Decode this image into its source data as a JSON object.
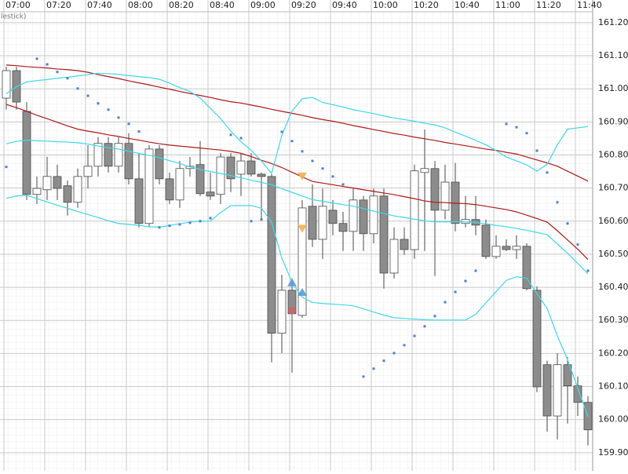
{
  "chart_data": {
    "type": "candlestick",
    "title": "lestick)",
    "categories": [
      "07:00",
      null,
      null,
      null,
      "07:20",
      null,
      null,
      null,
      "07:40",
      null,
      null,
      null,
      "08:00",
      null,
      null,
      null,
      "08:20",
      null,
      null,
      null,
      "08:40",
      null,
      null,
      null,
      "09:00",
      null,
      null,
      null,
      "09:20",
      null,
      null,
      null,
      "09:40",
      null,
      null,
      null,
      "10:00",
      null,
      null,
      null,
      "10:20",
      null,
      null,
      null,
      "10:40",
      null,
      null,
      null,
      "11:00",
      null,
      null,
      null,
      "11:20",
      null,
      null,
      null,
      "11:40",
      null
    ],
    "open": [
      160.972,
      161.055,
      160.932,
      160.681,
      160.695,
      160.735,
      160.707,
      160.657,
      160.735,
      160.766,
      160.835,
      160.766,
      160.835,
      160.728,
      160.593,
      160.818,
      160.728,
      160.664,
      160.759,
      160.771,
      160.688,
      160.681,
      160.794,
      160.742,
      160.782,
      160.742,
      160.735,
      160.261,
      160.391,
      160.315,
      160.645,
      160.545,
      160.633,
      160.593,
      160.569,
      160.664,
      160.562,
      160.676,
      160.443,
      160.545,
      160.514,
      160.747,
      160.759,
      160.633,
      160.718,
      160.593,
      160.605,
      160.588,
      160.493,
      160.524,
      160.514,
      160.524,
      160.391,
      160.166,
      160.011,
      160.166,
      160.102,
      160.052
    ],
    "high": [
      161.067,
      161.067,
      160.96,
      160.735,
      160.794,
      160.771,
      160.723,
      160.759,
      160.83,
      160.854,
      160.854,
      160.854,
      160.866,
      160.806,
      160.83,
      160.83,
      160.747,
      160.782,
      160.794,
      160.842,
      160.747,
      160.806,
      160.806,
      160.806,
      160.806,
      160.747,
      160.742,
      160.438,
      160.427,
      160.664,
      160.711,
      160.699,
      160.664,
      160.628,
      160.699,
      160.676,
      160.699,
      160.699,
      160.581,
      160.581,
      160.771,
      160.877,
      160.782,
      160.771,
      160.776,
      160.676,
      160.676,
      160.605,
      160.557,
      160.545,
      160.557,
      160.533,
      160.403,
      160.178,
      160.201,
      160.189,
      160.13,
      160.071
    ],
    "low": [
      160.937,
      160.937,
      160.664,
      160.652,
      160.664,
      160.664,
      160.617,
      160.64,
      160.699,
      160.735,
      160.747,
      160.747,
      160.711,
      160.581,
      160.581,
      160.711,
      160.652,
      160.64,
      160.735,
      160.676,
      160.664,
      160.652,
      160.688,
      160.676,
      160.735,
      160.605,
      160.173,
      160.201,
      160.142,
      160.308,
      160.522,
      160.486,
      160.557,
      160.51,
      160.51,
      160.51,
      160.533,
      160.396,
      160.427,
      160.498,
      160.486,
      160.51,
      160.434,
      160.605,
      160.569,
      160.581,
      160.557,
      160.486,
      160.486,
      160.51,
      160.486,
      160.391,
      160.083,
      159.964,
      159.94,
      159.988,
      160.011,
      159.922
    ],
    "close": [
      161.055,
      160.96,
      160.681,
      160.699,
      160.735,
      160.699,
      160.657,
      160.735,
      160.766,
      160.835,
      160.766,
      160.835,
      160.728,
      160.593,
      160.818,
      160.728,
      160.664,
      160.759,
      160.766,
      160.683,
      160.676,
      160.794,
      160.728,
      160.782,
      160.742,
      160.735,
      160.261,
      160.391,
      160.32,
      160.64,
      160.545,
      160.645,
      160.593,
      160.569,
      160.664,
      160.562,
      160.676,
      160.443,
      160.545,
      160.514,
      160.752,
      160.759,
      160.633,
      160.718,
      160.593,
      160.605,
      160.588,
      160.493,
      160.524,
      160.514,
      160.524,
      160.396,
      160.099,
      160.011,
      160.166,
      160.102,
      160.052,
      159.969
    ],
    "up_color": "#ffffff",
    "down_color": "#8c8c8c",
    "edge_color": "#4a4a4a",
    "lines": [
      {
        "color": "#b01818",
        "values": [
          161.072,
          161.07,
          161.067,
          161.065,
          161.063,
          161.06,
          161.058,
          161.055,
          161.05,
          161.043,
          161.037,
          161.031,
          161.024,
          161.018,
          161.012,
          161.005,
          160.999,
          160.992,
          160.986,
          160.98,
          160.974,
          160.967,
          160.961,
          160.957,
          160.951,
          160.945,
          160.938,
          160.932,
          160.926,
          160.92,
          160.913,
          160.907,
          160.902,
          160.896,
          160.889,
          160.883,
          160.877,
          160.871,
          160.865,
          160.86,
          160.854,
          160.849,
          160.844,
          160.838,
          160.833,
          160.828,
          160.823,
          160.818,
          160.814,
          160.808,
          160.803,
          160.794,
          160.785,
          160.776,
          160.766,
          160.751,
          160.736,
          160.721
        ]
      },
      {
        "color": "#b01818",
        "values": [
          160.953,
          160.943,
          160.932,
          160.92,
          160.91,
          160.899,
          160.888,
          160.878,
          160.872,
          160.867,
          160.861,
          160.856,
          160.85,
          160.845,
          160.839,
          160.834,
          160.83,
          160.827,
          160.824,
          160.821,
          160.818,
          160.815,
          160.811,
          160.805,
          160.795,
          160.784,
          160.774,
          160.762,
          160.748,
          160.734,
          160.72,
          160.715,
          160.71,
          160.705,
          160.7,
          160.695,
          160.69,
          160.685,
          160.68,
          160.674,
          160.668,
          160.661,
          160.657,
          160.656,
          160.654,
          160.653,
          160.65,
          160.645,
          160.64,
          160.635,
          160.628,
          160.618,
          160.608,
          160.597,
          160.571,
          160.543,
          160.515,
          160.484
        ]
      },
      {
        "color": "#3fd8e6",
        "values": [
          160.985,
          161.006,
          161.021,
          161.025,
          161.028,
          161.032,
          161.035,
          161.039,
          161.043,
          161.047,
          161.046,
          161.044,
          161.04,
          161.037,
          161.034,
          161.029,
          161.017,
          161.004,
          160.992,
          160.972,
          160.941,
          160.91,
          160.872,
          160.84,
          160.814,
          160.782,
          160.744,
          160.86,
          160.933,
          160.97,
          160.974,
          160.959,
          160.952,
          160.945,
          160.937,
          160.931,
          160.925,
          160.918,
          160.912,
          160.907,
          160.902,
          160.896,
          160.891,
          160.882,
          160.869,
          160.857,
          160.844,
          160.831,
          160.813,
          160.794,
          160.782,
          160.77,
          160.751,
          160.772,
          160.831,
          160.878,
          160.882,
          160.886
        ]
      },
      {
        "color": "#3fd8e6",
        "values": [
          160.834,
          160.841,
          160.845,
          160.843,
          160.842,
          160.84,
          160.839,
          160.837,
          160.833,
          160.827,
          160.822,
          160.818,
          160.811,
          160.805,
          160.799,
          160.792,
          160.783,
          160.774,
          160.764,
          160.756,
          160.75,
          160.744,
          160.738,
          160.731,
          160.724,
          160.717,
          160.71,
          160.698,
          160.687,
          160.676,
          160.665,
          160.66,
          160.655,
          160.65,
          160.645,
          160.638,
          160.63,
          160.623,
          160.616,
          160.611,
          160.606,
          160.601,
          160.598,
          160.598,
          160.598,
          160.598,
          160.596,
          160.592,
          160.587,
          160.583,
          160.578,
          160.572,
          160.566,
          160.559,
          160.531,
          160.503,
          160.472,
          160.441
        ]
      },
      {
        "color": "#3fd8e6",
        "values": [
          160.669,
          160.676,
          160.678,
          160.668,
          160.658,
          160.648,
          160.639,
          160.629,
          160.62,
          160.611,
          160.601,
          160.593,
          160.59,
          160.587,
          160.583,
          160.582,
          160.587,
          160.592,
          160.597,
          160.6,
          160.6,
          160.626,
          160.647,
          160.647,
          160.647,
          160.639,
          160.597,
          160.488,
          160.415,
          160.37,
          160.354,
          160.351,
          160.349,
          160.347,
          160.344,
          160.335,
          160.325,
          160.316,
          160.308,
          160.306,
          160.304,
          160.302,
          160.301,
          160.301,
          160.301,
          160.301,
          160.318,
          160.353,
          160.387,
          160.421,
          160.432,
          160.427,
          160.381,
          160.336,
          160.253,
          160.181,
          160.095,
          160.009
        ]
      }
    ],
    "dots": {
      "color": "#4f7fd0",
      "values": [
        160.764,
        null,
        null,
        161.091,
        161.074,
        161.051,
        161.032,
        161.001,
        160.979,
        160.956,
        160.937,
        160.913,
        160.894,
        160.871,
        null,
        160.581,
        160.586,
        160.59,
        160.595,
        160.6,
        160.609,
        null,
        160.861,
        160.851,
        160.6,
        160.605,
        null,
        160.87,
        160.842,
        160.811,
        160.782,
        160.759,
        160.735,
        160.711,
        null,
        160.13,
        160.154,
        160.178,
        160.201,
        160.225,
        160.253,
        160.282,
        160.313,
        160.355,
        160.386,
        160.419,
        160.45,
        null,
        null,
        160.894,
        160.884,
        160.866,
        160.813,
        160.747,
        160.657,
        160.593,
        160.529,
        160.45
      ]
    },
    "markers": [
      {
        "shape": "triangle-up",
        "color": "#5b9bd5",
        "index": 28,
        "value": 160.415
      },
      {
        "shape": "triangle-up",
        "color": "#5b9bd5",
        "index": 29,
        "value": 160.386
      },
      {
        "shape": "triangle-down",
        "color": "#f0b050",
        "index": 29,
        "value": 160.735
      },
      {
        "shape": "triangle-down",
        "color": "#f0b050",
        "index": 29,
        "value": 160.577
      },
      {
        "shape": "circle",
        "color": "#d06060",
        "index": 28,
        "value": 160.33
      }
    ],
    "ylim": [
      159.845,
      161.233
    ],
    "yticks": [
      {
        "value": 159.9,
        "label": "159.90"
      },
      {
        "value": 160.0,
        "label": "160.00"
      },
      {
        "value": 160.1,
        "label": "160.10"
      },
      {
        "value": 160.2,
        "label": "160.20"
      },
      {
        "value": 160.3,
        "label": "160.30"
      },
      {
        "value": 160.4,
        "label": "160.40"
      },
      {
        "value": 160.5,
        "label": "160.50"
      },
      {
        "value": 160.6,
        "label": "160.60"
      },
      {
        "value": 160.7,
        "label": "160.70"
      },
      {
        "value": 160.8,
        "label": "160.80"
      },
      {
        "value": 160.9,
        "label": "160.90"
      },
      {
        "value": 161.0,
        "label": "161.00"
      },
      {
        "value": 161.1,
        "label": "161.10"
      },
      {
        "value": 161.2,
        "label": "161.20"
      }
    ],
    "grid": true
  }
}
